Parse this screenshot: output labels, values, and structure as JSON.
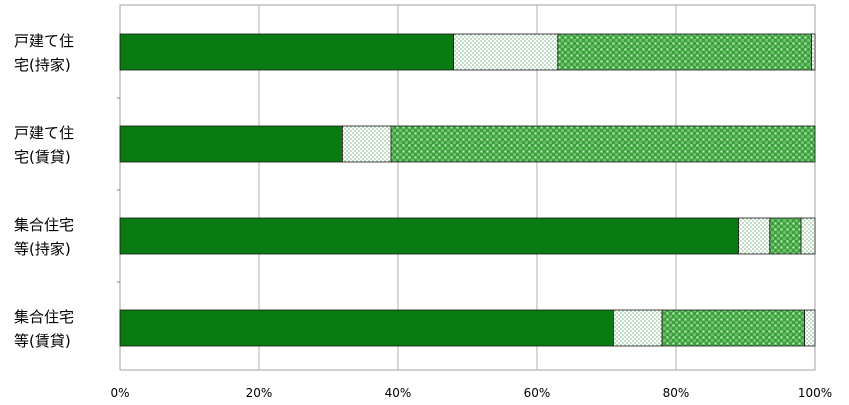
{
  "chart_data": {
    "type": "bar",
    "orientation": "horizontal",
    "stacked": true,
    "percent": true,
    "categories": [
      [
        "戸建て住",
        "宅(持家)"
      ],
      [
        "戸建て住",
        "宅(賃貸)"
      ],
      [
        "集合住宅",
        "等(持家)"
      ],
      [
        "集合住宅",
        "等(賃貸)"
      ]
    ],
    "series": [
      {
        "color": "#0a7a12",
        "pattern": "solid",
        "values": [
          48,
          32,
          89,
          71
        ]
      },
      {
        "color": "#ffffff",
        "pattern": "dots",
        "values": [
          15,
          7,
          4.5,
          7
        ]
      },
      {
        "color": "#43a843",
        "pattern": "checks",
        "values": [
          36.5,
          61,
          4.5,
          20.5
        ]
      },
      {
        "color": "#ffffff",
        "pattern": "dots",
        "values": [
          0.5,
          0,
          2,
          1.5
        ]
      }
    ],
    "xlim": [
      0,
      100
    ],
    "x_ticks": [
      "0%",
      "20%",
      "40%",
      "60%",
      "80%",
      "100%"
    ],
    "grid": true,
    "legend": "none",
    "title": "",
    "xlabel": "",
    "ylabel": ""
  }
}
